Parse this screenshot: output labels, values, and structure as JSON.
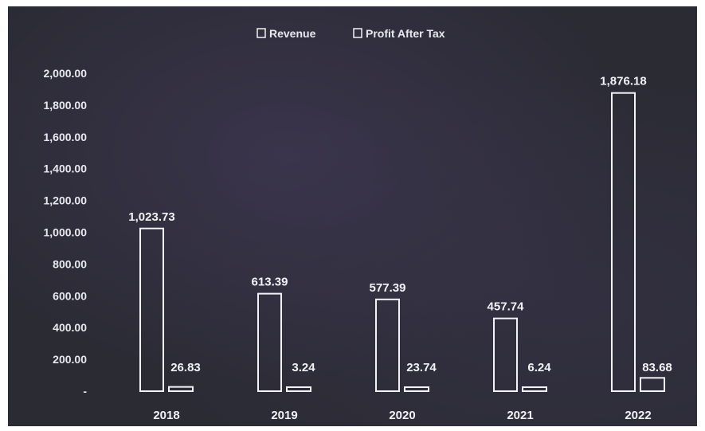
{
  "chart_data": {
    "type": "bar",
    "categories": [
      "2018",
      "2019",
      "2020",
      "2021",
      "2022"
    ],
    "series": [
      {
        "name": "Revenue",
        "values": [
          1023.73,
          613.39,
          577.39,
          457.74,
          1876.18
        ],
        "labels": [
          "1,023.73",
          "613.39",
          "577.39",
          "457.74",
          "1,876.18"
        ]
      },
      {
        "name": "Profit After Tax",
        "values": [
          26.83,
          3.24,
          23.74,
          6.24,
          83.68
        ],
        "labels": [
          "26.83",
          "3.24",
          "23.74",
          "6.24",
          "83.68"
        ]
      }
    ],
    "ylim": [
      0,
      2000
    ],
    "yticks": [
      0,
      200,
      400,
      600,
      800,
      1000,
      1200,
      1400,
      1600,
      1800,
      2000
    ],
    "ytick_labels": [
      "-",
      "200.00",
      "400.00",
      "600.00",
      "800.00",
      "1,000.00",
      "1,200.00",
      "1,400.00",
      "1,600.00",
      "1,800.00",
      "2,000.00"
    ],
    "legend_position": "top-center",
    "grid": false,
    "colors": {
      "background": "#2b2b34",
      "bar_outline": "#f2f2f7",
      "text": "#e8e8ef"
    }
  }
}
